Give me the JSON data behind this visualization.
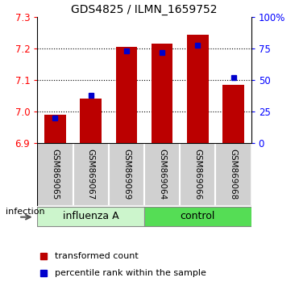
{
  "title": "GDS4825 / ILMN_1659752",
  "samples": [
    "GSM869065",
    "GSM869067",
    "GSM869069",
    "GSM869064",
    "GSM869066",
    "GSM869068"
  ],
  "group_labels": [
    "influenza A",
    "control"
  ],
  "transformed_counts": [
    6.99,
    7.04,
    7.205,
    7.215,
    7.245,
    7.085
  ],
  "percentile_ranks": [
    20,
    38,
    73,
    72,
    78,
    52
  ],
  "bar_color": "#bb0000",
  "dot_color": "#0000cc",
  "y_min": 6.9,
  "y_max": 7.3,
  "y_ticks": [
    6.9,
    7.0,
    7.1,
    7.2,
    7.3
  ],
  "y2_ticks": [
    0,
    25,
    50,
    75,
    100
  ],
  "y2_labels": [
    "0",
    "25",
    "50",
    "75",
    "100%"
  ],
  "bar_bottom": 6.9,
  "infection_label": "infection",
  "legend_bar_label": "transformed count",
  "legend_dot_label": "percentile rank within the sample",
  "influenza_color": "#ccf5cc",
  "control_color": "#55dd55",
  "sample_box_color": "#d0d0d0",
  "title_fontsize": 10,
  "tick_fontsize": 8.5,
  "sample_fontsize": 7.5,
  "group_fontsize": 9,
  "legend_fontsize": 8
}
